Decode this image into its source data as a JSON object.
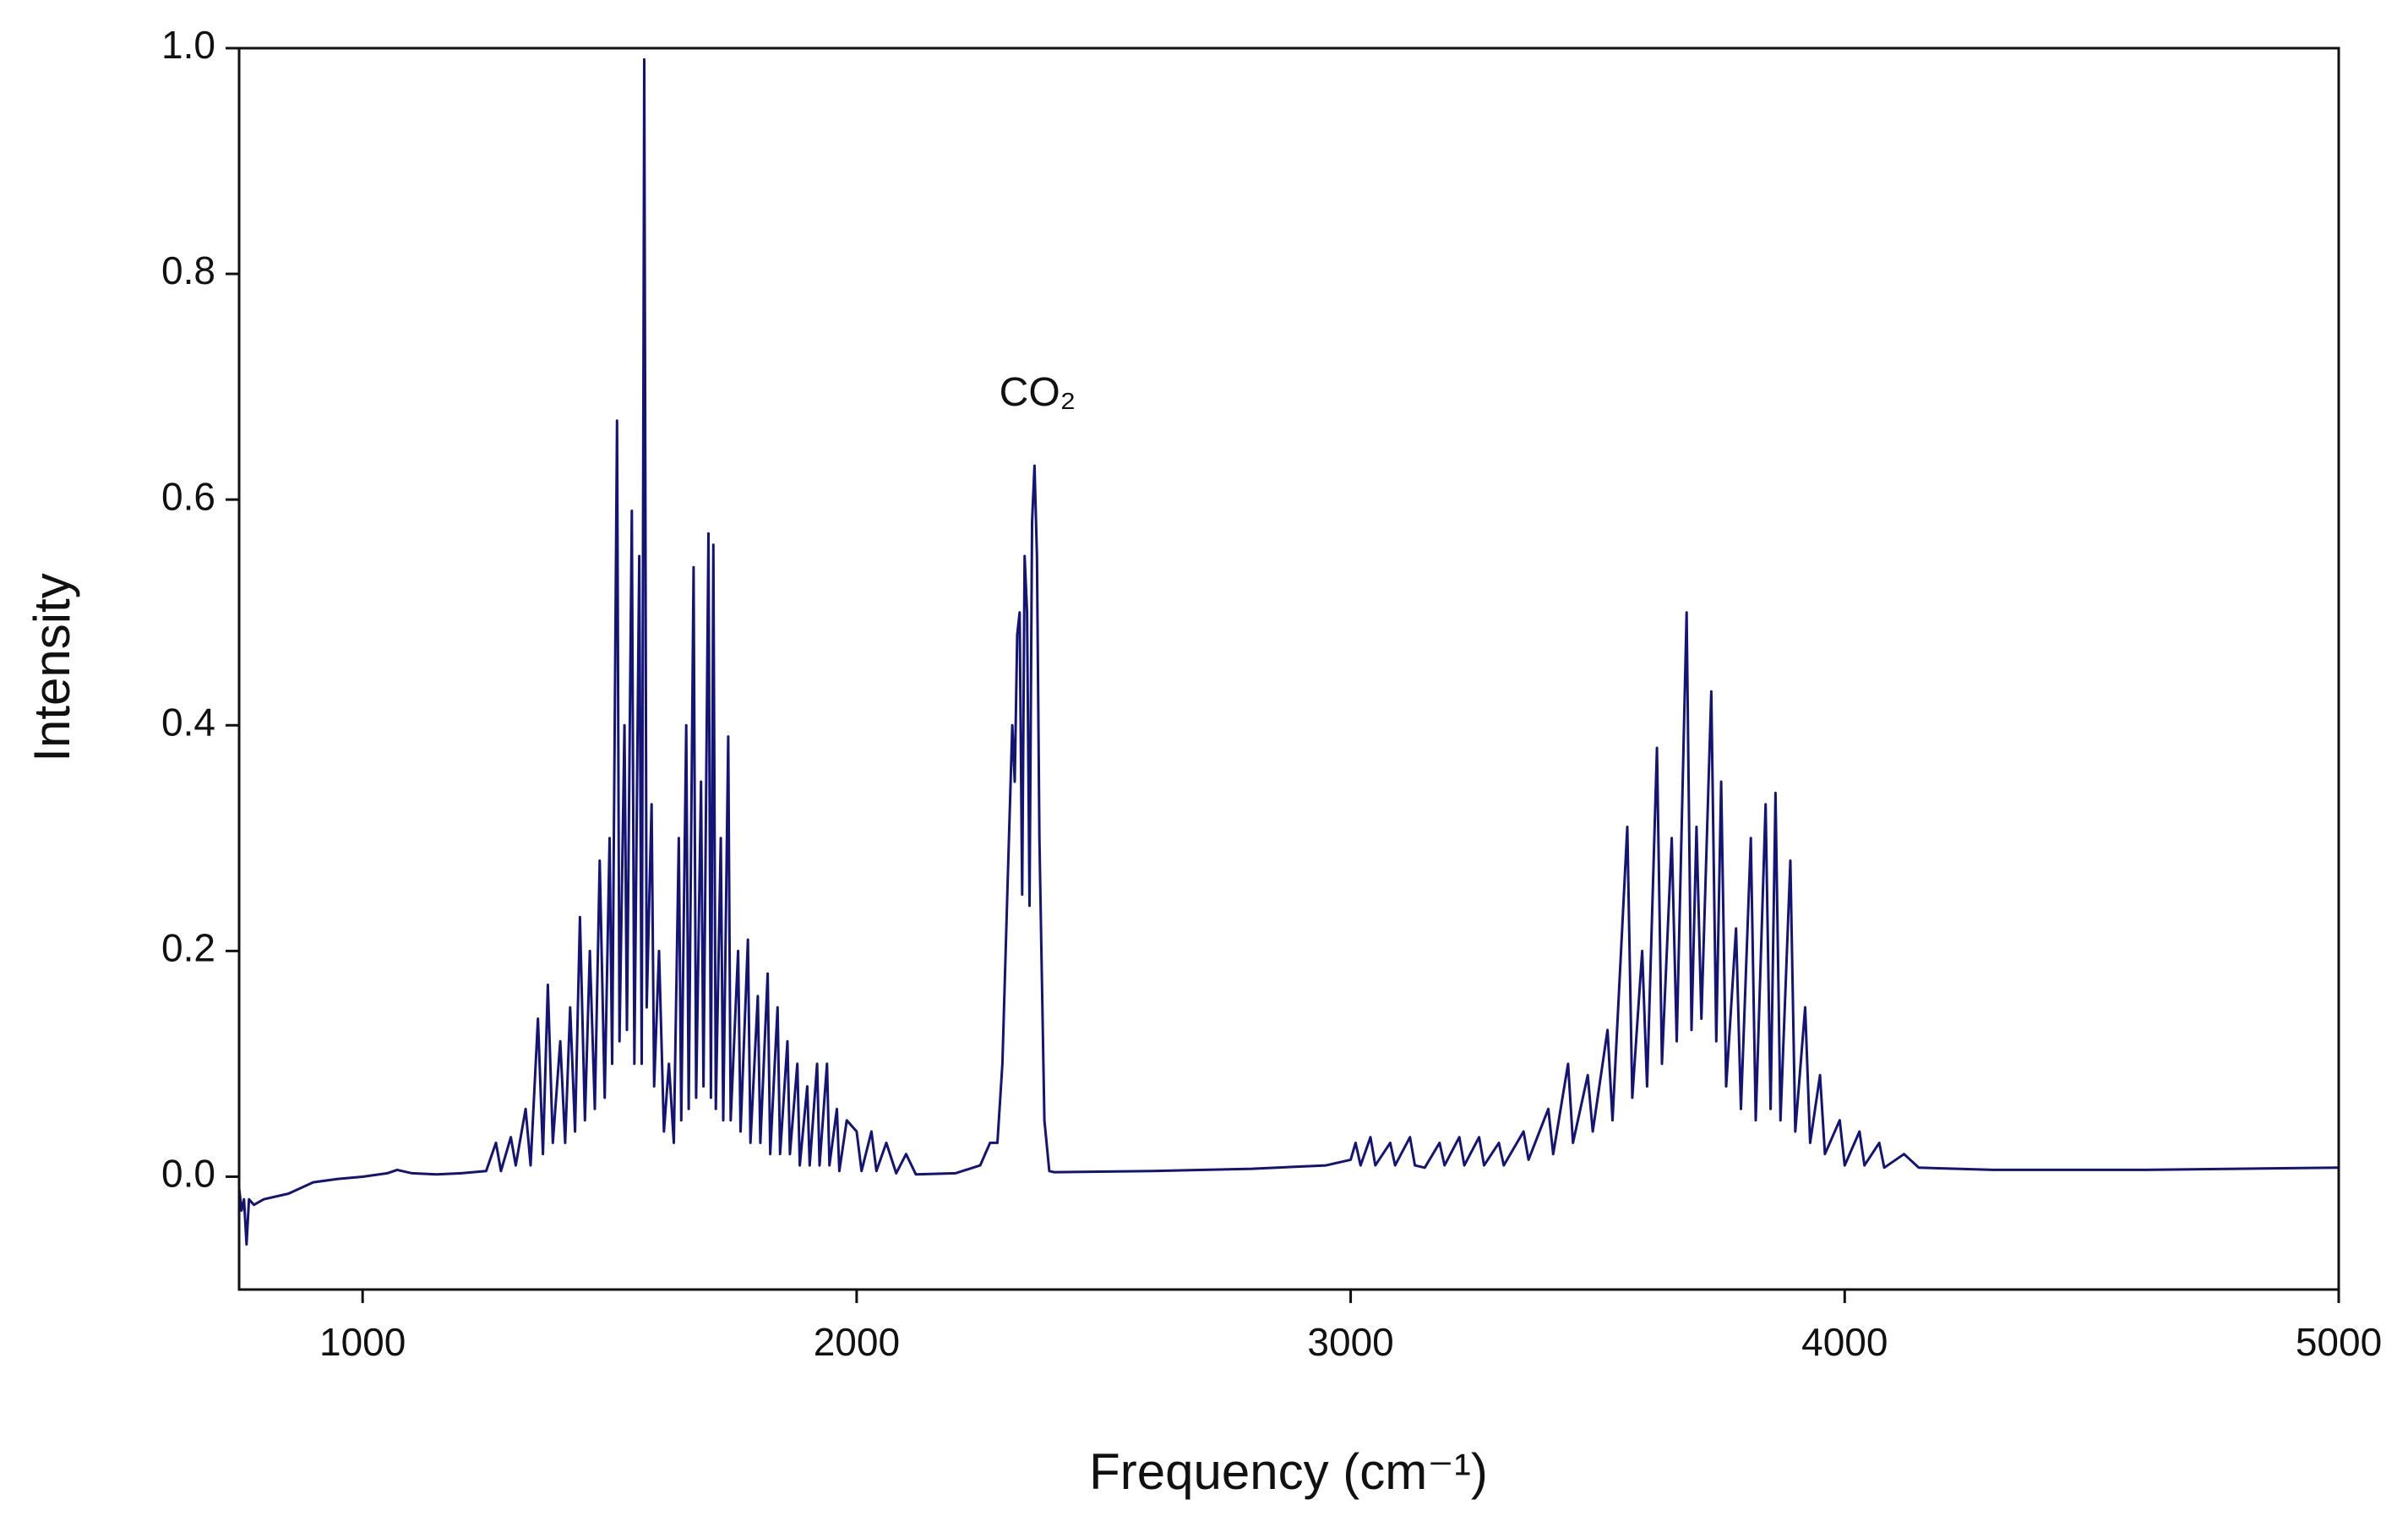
{
  "chart_data": {
    "type": "line",
    "xlabel": "Frequency (cm⁻¹)",
    "ylabel": "Intensity",
    "annotation": "CO₂",
    "xlim": [
      750,
      5000
    ],
    "xticks": [
      1000,
      2000,
      3000,
      4000,
      5000
    ],
    "ylim": [
      -0.1,
      1.0
    ],
    "yticks": [
      {
        "value": 0,
        "label": "0.0"
      },
      0.2,
      0.4,
      0.6,
      0.8,
      {
        "value": 1,
        "label": "1.0"
      }
    ],
    "grid": false,
    "series": [
      {
        "color": "#141478",
        "x": [
          750,
          755,
          760,
          765,
          770,
          780,
          800,
          850,
          900,
          950,
          1000,
          1050,
          1070,
          1100,
          1150,
          1200,
          1250,
          1270,
          1280,
          1300,
          1310,
          1330,
          1340,
          1355,
          1365,
          1375,
          1385,
          1400,
          1410,
          1420,
          1430,
          1440,
          1450,
          1460,
          1470,
          1480,
          1490,
          1500,
          1505,
          1515,
          1520,
          1530,
          1535,
          1545,
          1550,
          1560,
          1565,
          1570,
          1575,
          1585,
          1590,
          1600,
          1610,
          1620,
          1630,
          1640,
          1645,
          1655,
          1660,
          1670,
          1675,
          1685,
          1690,
          1700,
          1705,
          1710,
          1715,
          1725,
          1730,
          1740,
          1745,
          1760,
          1765,
          1780,
          1785,
          1800,
          1805,
          1820,
          1825,
          1840,
          1845,
          1860,
          1865,
          1880,
          1885,
          1900,
          1905,
          1920,
          1925,
          1940,
          1945,
          1960,
          1965,
          1980,
          2000,
          2010,
          2030,
          2040,
          2060,
          2080,
          2100,
          2120,
          2200,
          2250,
          2270,
          2285,
          2295,
          2305,
          2315,
          2320,
          2325,
          2330,
          2335,
          2340,
          2345,
          2350,
          2355,
          2360,
          2365,
          2370,
          2380,
          2390,
          2400,
          2600,
          2800,
          2950,
          3000,
          3010,
          3020,
          3040,
          3050,
          3080,
          3090,
          3120,
          3130,
          3150,
          3180,
          3190,
          3220,
          3230,
          3260,
          3270,
          3300,
          3310,
          3350,
          3360,
          3400,
          3410,
          3440,
          3450,
          3480,
          3490,
          3520,
          3530,
          3560,
          3570,
          3590,
          3600,
          3620,
          3630,
          3650,
          3660,
          3680,
          3690,
          3700,
          3710,
          3730,
          3740,
          3750,
          3760,
          3780,
          3790,
          3810,
          3820,
          3840,
          3850,
          3860,
          3870,
          3890,
          3900,
          3920,
          3930,
          3950,
          3960,
          3990,
          4000,
          4030,
          4040,
          4070,
          4080,
          4120,
          4150,
          4300,
          4600,
          5000
        ],
        "values": [
          -0.01,
          -0.03,
          -0.02,
          -0.06,
          -0.02,
          -0.025,
          -0.02,
          -0.015,
          -0.005,
          -0.002,
          0,
          0.003,
          0.006,
          0.003,
          0.002,
          0.003,
          0.005,
          0.03,
          0.005,
          0.035,
          0.01,
          0.06,
          0.01,
          0.14,
          0.02,
          0.17,
          0.03,
          0.12,
          0.03,
          0.15,
          0.04,
          0.23,
          0.05,
          0.2,
          0.06,
          0.28,
          0.07,
          0.3,
          0.1,
          0.67,
          0.12,
          0.4,
          0.13,
          0.59,
          0.1,
          0.55,
          0.1,
          0.99,
          0.15,
          0.33,
          0.08,
          0.2,
          0.04,
          0.1,
          0.03,
          0.3,
          0.05,
          0.4,
          0.06,
          0.54,
          0.07,
          0.35,
          0.08,
          0.57,
          0.07,
          0.56,
          0.06,
          0.3,
          0.05,
          0.39,
          0.05,
          0.2,
          0.04,
          0.21,
          0.03,
          0.16,
          0.03,
          0.18,
          0.02,
          0.15,
          0.02,
          0.12,
          0.02,
          0.1,
          0.01,
          0.08,
          0.01,
          0.1,
          0.01,
          0.1,
          0.01,
          0.06,
          0.005,
          0.05,
          0.04,
          0.005,
          0.04,
          0.005,
          0.03,
          0.003,
          0.02,
          0.002,
          0.003,
          0.01,
          0.03,
          0.03,
          0.1,
          0.25,
          0.4,
          0.35,
          0.48,
          0.5,
          0.25,
          0.55,
          0.5,
          0.24,
          0.58,
          0.63,
          0.55,
          0.3,
          0.05,
          0.005,
          0.004,
          0.005,
          0.007,
          0.01,
          0.015,
          0.03,
          0.01,
          0.035,
          0.01,
          0.03,
          0.01,
          0.035,
          0.01,
          0.008,
          0.03,
          0.01,
          0.035,
          0.01,
          0.035,
          0.01,
          0.03,
          0.01,
          0.04,
          0.015,
          0.06,
          0.02,
          0.1,
          0.03,
          0.09,
          0.04,
          0.13,
          0.05,
          0.31,
          0.07,
          0.2,
          0.08,
          0.38,
          0.1,
          0.3,
          0.12,
          0.5,
          0.13,
          0.31,
          0.14,
          0.43,
          0.12,
          0.35,
          0.08,
          0.22,
          0.06,
          0.3,
          0.05,
          0.33,
          0.06,
          0.34,
          0.05,
          0.28,
          0.04,
          0.15,
          0.03,
          0.09,
          0.02,
          0.05,
          0.01,
          0.04,
          0.01,
          0.03,
          0.008,
          0.02,
          0.008,
          0.006,
          0.006,
          0.008
        ]
      }
    ]
  }
}
